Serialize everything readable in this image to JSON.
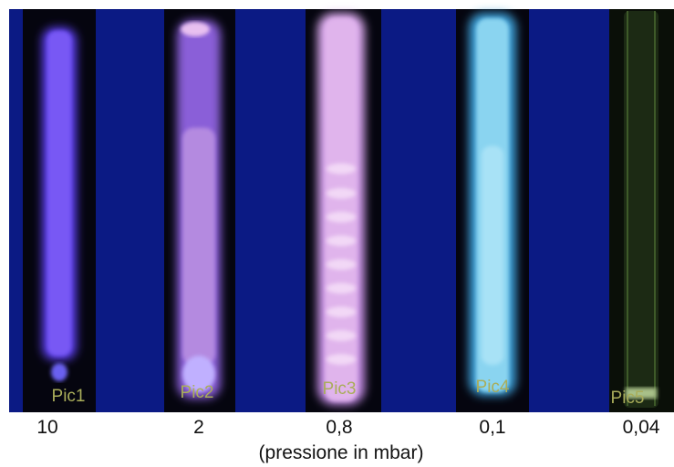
{
  "panels": [
    {
      "label": "Pic1",
      "pressure": "10"
    },
    {
      "label": "Pic2",
      "pressure": "2"
    },
    {
      "label": "Pic3",
      "pressure": "0,8"
    },
    {
      "label": "Pic4",
      "pressure": "0,1"
    },
    {
      "label": "Pic5",
      "pressure": "0,04"
    }
  ],
  "caption": "(pressione in mbar)"
}
